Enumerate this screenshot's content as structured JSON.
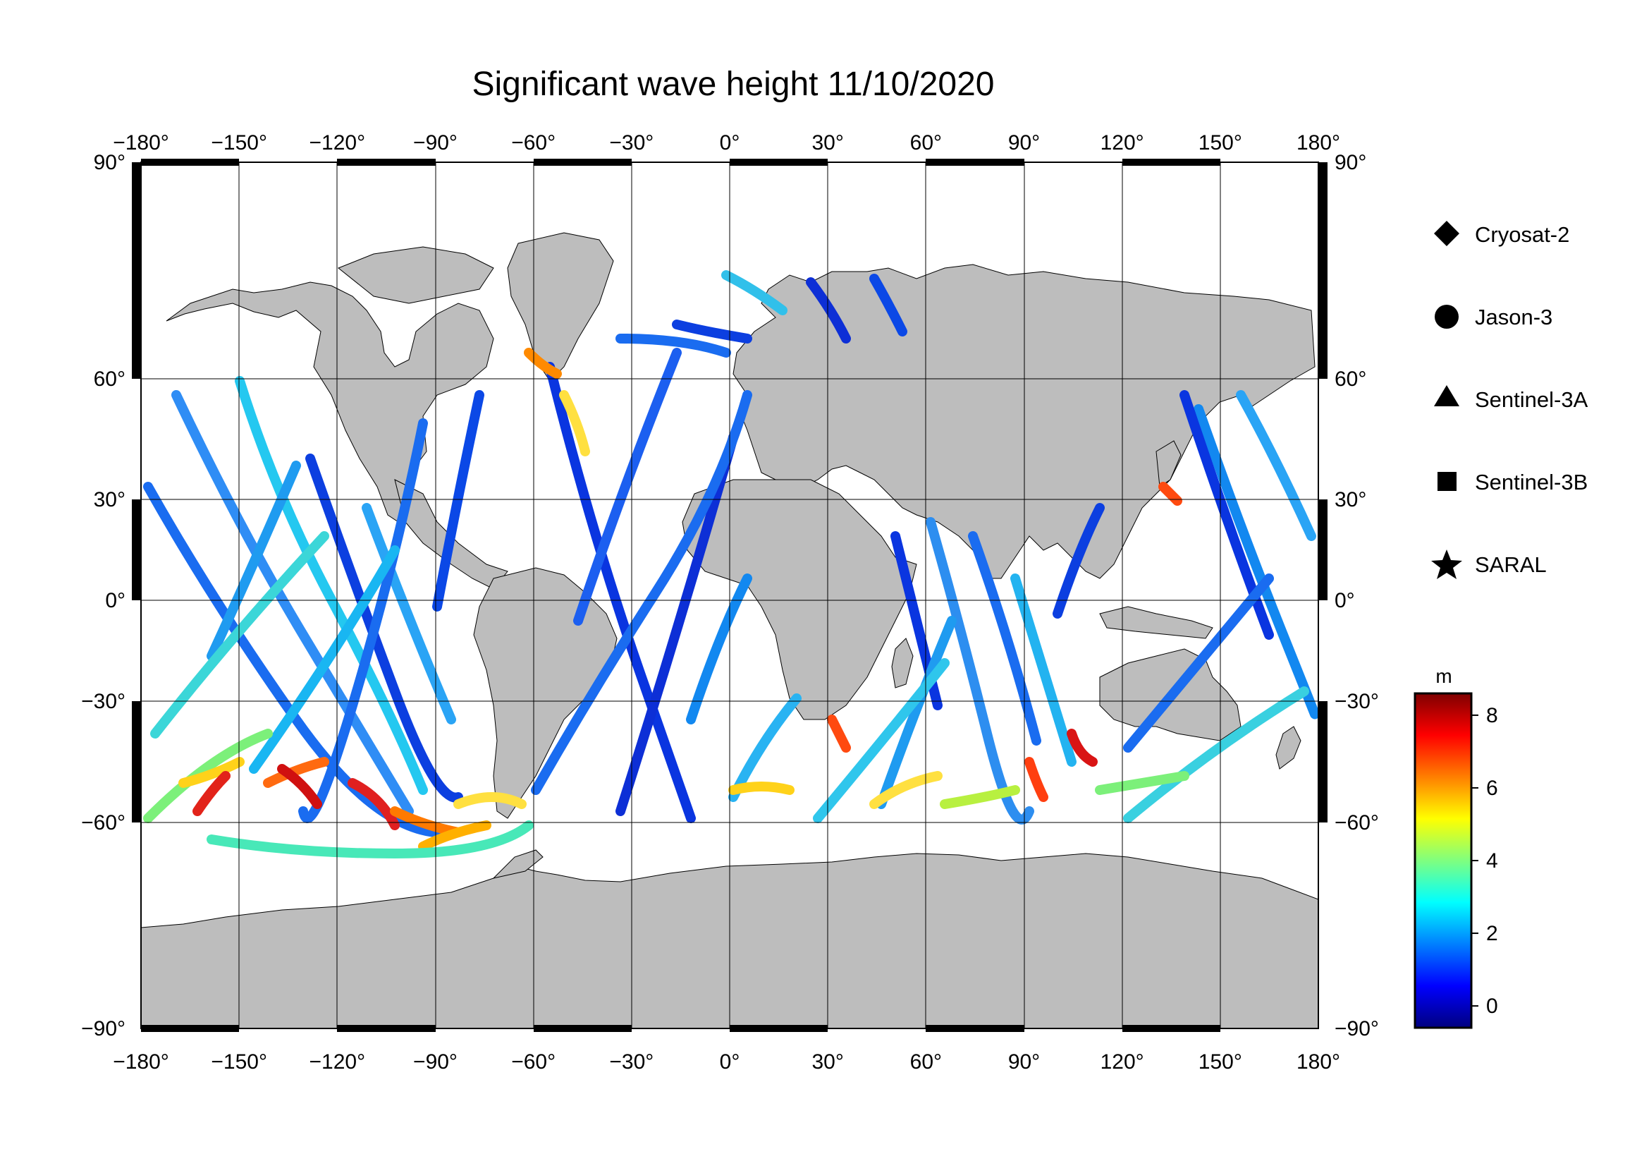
{
  "title": "Significant wave height 11/10/2020",
  "map": {
    "lon_ticks": [
      -180,
      -150,
      -120,
      -90,
      -60,
      -30,
      0,
      30,
      60,
      90,
      120,
      150,
      180
    ],
    "lat_ticks": [
      90,
      60,
      30,
      0,
      -30,
      -60,
      -90
    ],
    "lon_range": [
      -180,
      180
    ],
    "lat_range": [
      -90,
      90
    ],
    "degree_symbol": "°",
    "land_color": "#bdbdbd",
    "ocean_color": "#ffffff",
    "grid": true
  },
  "legend": {
    "items": [
      {
        "label": "Cryosat-2",
        "icon": "diamond-icon"
      },
      {
        "label": "Jason-3",
        "icon": "circle-icon"
      },
      {
        "label": "Sentinel-3A",
        "icon": "triangle-icon"
      },
      {
        "label": "Sentinel-3B",
        "icon": "square-icon"
      },
      {
        "label": "SARAL",
        "icon": "star-icon"
      }
    ]
  },
  "colorbar": {
    "unit": "m",
    "ticks": [
      "8",
      "6",
      "4",
      "2",
      "0"
    ],
    "range": [
      -0.6,
      8.6
    ],
    "colors": [
      "#00007f",
      "#0000ff",
      "#007fff",
      "#00ffff",
      "#7fff7f",
      "#ffff00",
      "#ff7f00",
      "#ff0000",
      "#7f0000"
    ]
  }
}
